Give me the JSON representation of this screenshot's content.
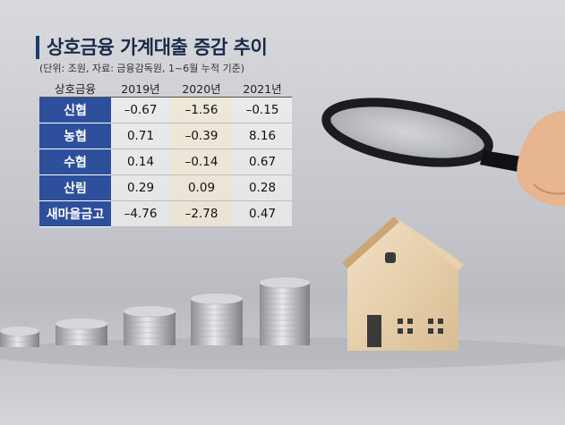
{
  "colors": {
    "accent": "#2e4f9b",
    "title": "#1a2a4a",
    "highlight": "#fdf3dc"
  },
  "chart_data": {
    "type": "table",
    "title": "상호금융 가계대출 증감 추이",
    "subtitle": "(단위: 조원, 자료: 금융감독원, 1~6월 누적 기준)",
    "header": [
      "상호금융",
      "2019년",
      "2020년",
      "2021년"
    ],
    "rows": [
      {
        "category": "신협",
        "values": [
          "–0.67",
          "–1.56",
          "–0.15"
        ]
      },
      {
        "category": "농협",
        "values": [
          "0.71",
          "–0.39",
          "8.16"
        ]
      },
      {
        "category": "수협",
        "values": [
          "0.14",
          "–0.14",
          "0.67"
        ]
      },
      {
        "category": "산림",
        "values": [
          "0.29",
          "0.09",
          "0.28"
        ]
      },
      {
        "category": "새마을금고",
        "values": [
          "–4.76",
          "–2.78",
          "0.47"
        ]
      }
    ]
  }
}
